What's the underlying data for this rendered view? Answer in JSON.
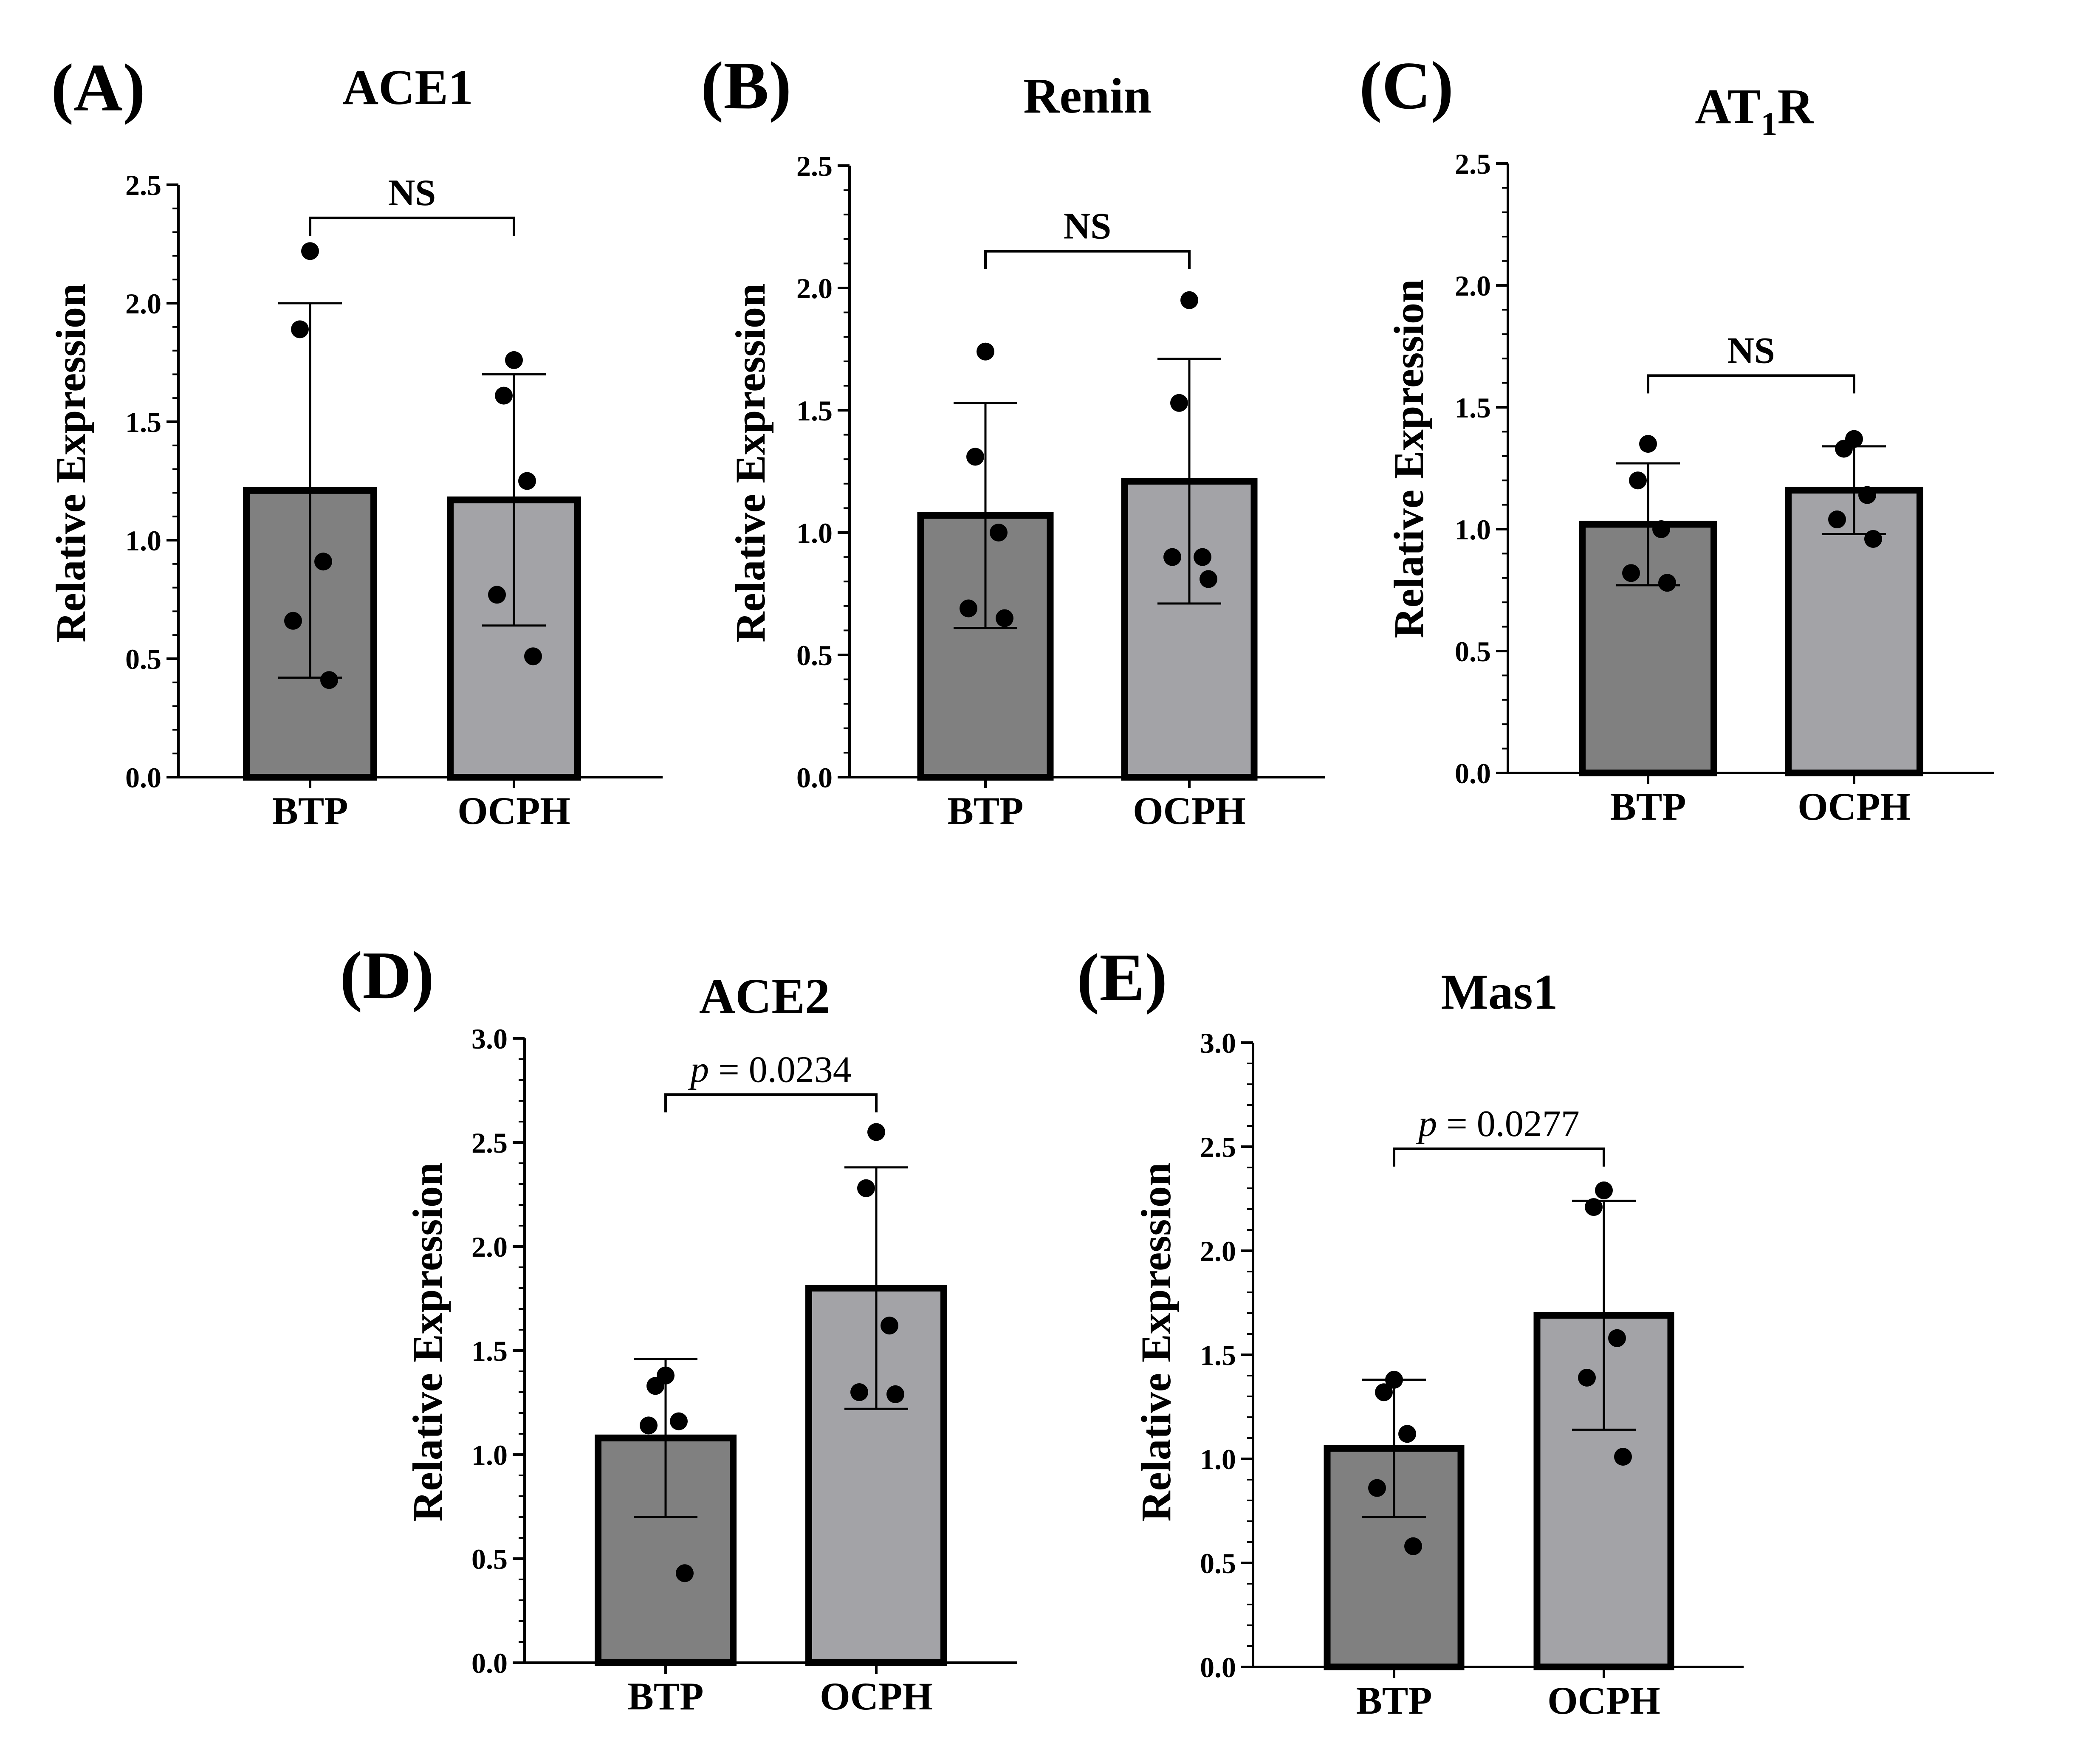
{
  "figure": {
    "panel_letters": [
      "(A)",
      "(B)",
      "(C)",
      "(D)",
      "(E)"
    ]
  },
  "colors": {
    "btp_bar": "#808080",
    "ocph_bar": "#a3a3a7",
    "outline": "#000000"
  },
  "chart_data": [
    {
      "type": "bar",
      "panel": "(A)",
      "title": "ACE1",
      "title_sub": "",
      "title_tail": "",
      "ylabel": "Relative Expression",
      "xlabel": "",
      "ylim": [
        0,
        2.5
      ],
      "yticks": [
        "0.0",
        "0.5",
        "1.0",
        "1.5",
        "2.0",
        "2.5"
      ],
      "categories": [
        "BTP",
        "OCPH"
      ],
      "values": [
        1.21,
        1.17
      ],
      "sd": [
        0.79,
        0.53
      ],
      "points": [
        [
          2.22,
          1.89,
          0.91,
          0.66,
          0.41
        ],
        [
          1.76,
          1.61,
          1.25,
          0.77,
          0.51
        ]
      ],
      "annotation": {
        "text": "NS",
        "italic_p": false,
        "bracket_y": 2.36
      }
    },
    {
      "type": "bar",
      "panel": "(B)",
      "title": "Renin",
      "title_sub": "",
      "title_tail": "",
      "ylabel": "Relative Expression",
      "xlabel": "",
      "ylim": [
        0,
        2.5
      ],
      "yticks": [
        "0.0",
        "0.5",
        "1.0",
        "1.5",
        "2.0",
        "2.5"
      ],
      "categories": [
        "BTP",
        "OCPH"
      ],
      "values": [
        1.07,
        1.21
      ],
      "sd": [
        0.46,
        0.5
      ],
      "points": [
        [
          1.74,
          1.31,
          1.0,
          0.69,
          0.65
        ],
        [
          1.95,
          1.53,
          0.9,
          0.9,
          0.81
        ]
      ],
      "annotation": {
        "text": "NS",
        "italic_p": false,
        "bracket_y": 2.15
      }
    },
    {
      "type": "bar",
      "panel": "(C)",
      "title": "AT",
      "title_sub": "1",
      "title_tail": "R",
      "ylabel": "Relative Expression",
      "xlabel": "",
      "ylim": [
        0,
        2.5
      ],
      "yticks": [
        "0.0",
        "0.5",
        "1.0",
        "1.5",
        "2.0",
        "2.5"
      ],
      "categories": [
        "BTP",
        "OCPH"
      ],
      "values": [
        1.02,
        1.16
      ],
      "sd": [
        0.25,
        0.18
      ],
      "points": [
        [
          1.35,
          1.2,
          1.0,
          0.82,
          0.78
        ],
        [
          1.37,
          1.33,
          1.14,
          1.04,
          0.96
        ]
      ],
      "annotation": {
        "text": "NS",
        "italic_p": false,
        "bracket_y": 1.63
      }
    },
    {
      "type": "bar",
      "panel": "(D)",
      "title": "ACE2",
      "title_sub": "",
      "title_tail": "",
      "ylabel": "Relative Expression",
      "xlabel": "",
      "ylim": [
        0,
        3.0
      ],
      "yticks": [
        "0.0",
        "0.5",
        "1.0",
        "1.5",
        "2.0",
        "2.5",
        "3.0"
      ],
      "categories": [
        "BTP",
        "OCPH"
      ],
      "values": [
        1.08,
        1.8
      ],
      "sd": [
        0.38,
        0.58
      ],
      "points": [
        [
          1.38,
          1.33,
          1.16,
          1.14,
          0.43
        ],
        [
          2.55,
          2.28,
          1.62,
          1.3,
          1.29
        ]
      ],
      "annotation": {
        "text": "= 0.0234",
        "italic_p": true,
        "p_symbol": "p",
        "bracket_y": 2.73
      }
    },
    {
      "type": "bar",
      "panel": "(E)",
      "title": "Mas1",
      "title_sub": "",
      "title_tail": "",
      "ylabel": "Relative Expression",
      "xlabel": "",
      "ylim": [
        0,
        3.0
      ],
      "yticks": [
        "0.0",
        "0.5",
        "1.0",
        "1.5",
        "2.0",
        "2.5",
        "3.0"
      ],
      "categories": [
        "BTP",
        "OCPH"
      ],
      "values": [
        1.05,
        1.69
      ],
      "sd": [
        0.33,
        0.55
      ],
      "points": [
        [
          1.38,
          1.32,
          1.12,
          0.86,
          0.58
        ],
        [
          2.29,
          2.21,
          1.58,
          1.39,
          1.01
        ]
      ],
      "annotation": {
        "text": "= 0.0277",
        "italic_p": true,
        "p_symbol": "p",
        "bracket_y": 2.49
      }
    }
  ]
}
